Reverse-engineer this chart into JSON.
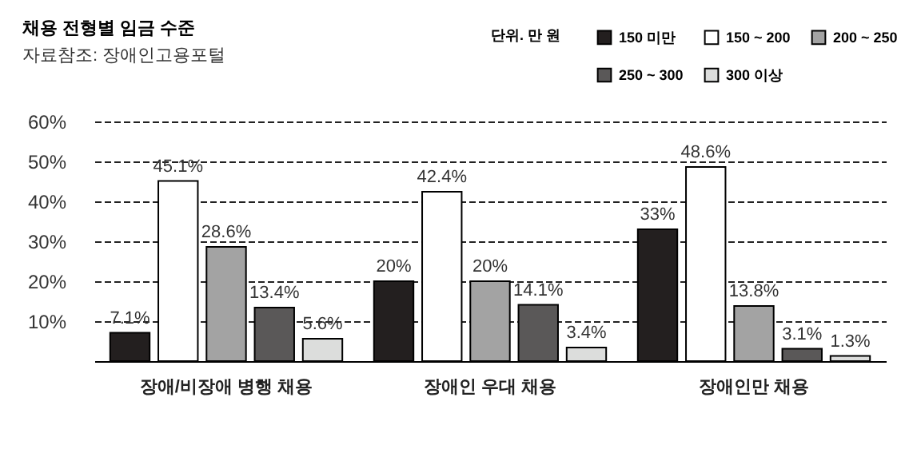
{
  "chart_data": {
    "type": "bar",
    "title": "채용 전형별 임금 수준",
    "subtitle": "자료참조: 장애인고용포털",
    "legend_title": "단위. 만 원",
    "categories": [
      "장애/비장애 병행 채용",
      "장애인 우대 채용",
      "장애인만 채용"
    ],
    "series": [
      {
        "name": "150 미만",
        "color": "#231f1f",
        "values": [
          7.1,
          20,
          33
        ],
        "value_labels": [
          "7.1%",
          "20%",
          "33%"
        ]
      },
      {
        "name": "150 ~ 200",
        "color": "#ffffff",
        "values": [
          45.1,
          42.4,
          48.6
        ],
        "value_labels": [
          "45.1%",
          "42.4%",
          "48.6%"
        ]
      },
      {
        "name": "200 ~ 250",
        "color": "#a3a3a3",
        "values": [
          28.6,
          20,
          13.8
        ],
        "value_labels": [
          "28.6%",
          "20%",
          "13.8%"
        ]
      },
      {
        "name": "250 ~ 300",
        "color": "#5a5858",
        "values": [
          13.4,
          14.1,
          3.1
        ],
        "value_labels": [
          "13.4%",
          "14.1%",
          "3.1%"
        ]
      },
      {
        "name": "300 이상",
        "color": "#dcdddc",
        "values": [
          5.6,
          3.4,
          1.3
        ],
        "value_labels": [
          "5.6%",
          "3.4%",
          "1.3%"
        ]
      }
    ],
    "ylim": [
      0,
      60
    ],
    "yticks": [
      {
        "value": 10,
        "label": "10%"
      },
      {
        "value": 20,
        "label": "20%"
      },
      {
        "value": 30,
        "label": "30%"
      },
      {
        "value": 40,
        "label": "40%"
      },
      {
        "value": 50,
        "label": "50%"
      },
      {
        "value": 60,
        "label": "60%"
      }
    ],
    "grid": "y",
    "legend": "top right"
  }
}
